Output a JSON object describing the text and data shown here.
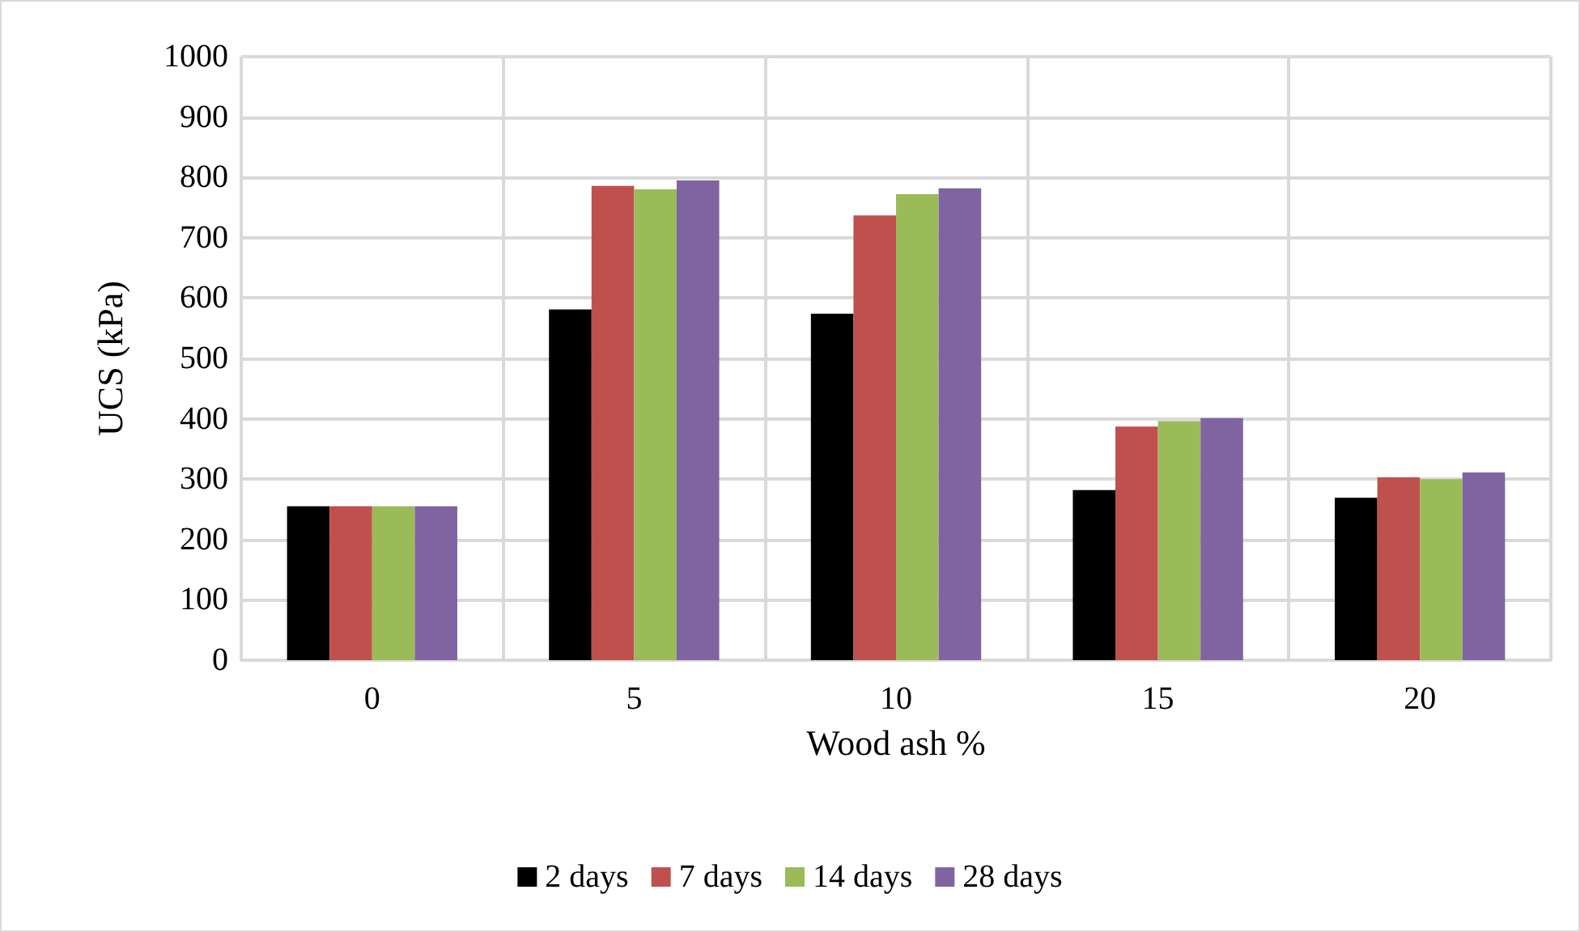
{
  "chart_data": {
    "type": "bar",
    "xlabel": "Wood ash %",
    "ylabel": "UCS (kPa)",
    "categories": [
      "0",
      "5",
      "10",
      "15",
      "20"
    ],
    "series": [
      {
        "name": "2 days",
        "color": "#000000",
        "values": [
          255,
          581,
          574,
          282,
          269
        ]
      },
      {
        "name": "7 days",
        "color": "#c0504d",
        "values": [
          255,
          786,
          737,
          387,
          303
        ]
      },
      {
        "name": "14 days",
        "color": "#9bbb59",
        "values": [
          255,
          780,
          772,
          396,
          300
        ]
      },
      {
        "name": "28 days",
        "color": "#8064a2",
        "values": [
          255,
          795,
          782,
          401,
          311
        ]
      }
    ],
    "ylim": [
      0,
      1000
    ],
    "yticks": [
      0,
      100,
      200,
      300,
      400,
      500,
      600,
      700,
      800,
      900,
      1000
    ],
    "grid": true,
    "legend": "bottom"
  }
}
